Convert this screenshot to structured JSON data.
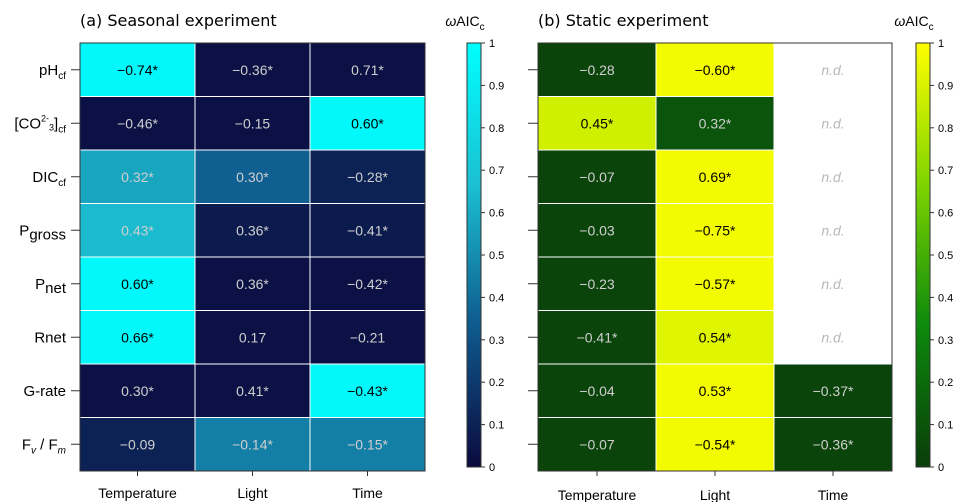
{
  "chart_data": [
    {
      "type": "heatmap",
      "title": "(a) Seasonal experiment",
      "rows": [
        "pH_cf",
        "[CO3 2-]_cf",
        "DIC_cf",
        "P_gross",
        "P_net",
        "Rnet",
        "G-rate",
        "F_v / F_m"
      ],
      "columns": [
        "Temperature",
        "Light",
        "Time"
      ],
      "cells": [
        [
          {
            "label": "−0.74*",
            "w": 0.97
          },
          {
            "label": "−0.36*",
            "w": 0.03
          },
          {
            "label": "0.71*",
            "w": 0.03
          }
        ],
        [
          {
            "label": "−0.46*",
            "w": 0.03
          },
          {
            "label": "−0.15",
            "w": 0.03
          },
          {
            "label": "0.60*",
            "w": 0.97
          }
        ],
        [
          {
            "label": "0.32*",
            "w": 0.58
          },
          {
            "label": "0.30*",
            "w": 0.35
          },
          {
            "label": "−0.28*",
            "w": 0.1
          }
        ],
        [
          {
            "label": "0.43*",
            "w": 0.65
          },
          {
            "label": "0.36*",
            "w": 0.07
          },
          {
            "label": "−0.41*",
            "w": 0.07
          }
        ],
        [
          {
            "label": "0.60*",
            "w": 0.97
          },
          {
            "label": "0.36*",
            "w": 0.03
          },
          {
            "label": "−0.42*",
            "w": 0.03
          }
        ],
        [
          {
            "label": "0.66*",
            "w": 0.97
          },
          {
            "label": "0.17",
            "w": 0.03
          },
          {
            "label": "−0.21",
            "w": 0.03
          }
        ],
        [
          {
            "label": "0.30*",
            "w": 0.03
          },
          {
            "label": "0.41*",
            "w": 0.03
          },
          {
            "label": "−0.43*",
            "w": 0.97
          }
        ],
        [
          {
            "label": "−0.09",
            "w": 0.1
          },
          {
            "label": "−0.14*",
            "w": 0.45
          },
          {
            "label": "−0.15*",
            "w": 0.45
          }
        ]
      ],
      "colorbar": {
        "label": "ωAIC_c",
        "range": [
          0,
          1
        ],
        "ticks": [
          "0",
          "0.1",
          "0.2",
          "0.3",
          "0.4",
          "0.5",
          "0.6",
          "0.7",
          "0.8",
          "0.9",
          "1"
        ],
        "colors": [
          "#0b0a3d",
          "#0f5a8e",
          "#1bc0d2",
          "#00ffff"
        ]
      }
    },
    {
      "type": "heatmap",
      "title": "(b) Static experiment",
      "rows": [
        "pH_cf",
        "[CO3 2-]_cf",
        "DIC_cf",
        "P_gross",
        "P_net",
        "Rnet",
        "G-rate",
        "F_v / F_m"
      ],
      "columns": [
        "Temperature",
        "Light",
        "Time"
      ],
      "cells": [
        [
          {
            "label": "−0.28",
            "w": 0.03
          },
          {
            "label": "−0.60*",
            "w": 0.97
          },
          {
            "label": "n.d.",
            "w": null
          }
        ],
        [
          {
            "label": "0.45*",
            "w": 0.88
          },
          {
            "label": "0.32*",
            "w": 0.1
          },
          {
            "label": "n.d.",
            "w": null
          }
        ],
        [
          {
            "label": "−0.07",
            "w": 0.03
          },
          {
            "label": "0.69*",
            "w": 0.97
          },
          {
            "label": "n.d.",
            "w": null
          }
        ],
        [
          {
            "label": "−0.03",
            "w": 0.03
          },
          {
            "label": "−0.75*",
            "w": 0.97
          },
          {
            "label": "n.d.",
            "w": null
          }
        ],
        [
          {
            "label": "−0.23",
            "w": 0.03
          },
          {
            "label": "−0.57*",
            "w": 0.97
          },
          {
            "label": "n.d.",
            "w": null
          }
        ],
        [
          {
            "label": "−0.41*",
            "w": 0.03
          },
          {
            "label": "0.54*",
            "w": 0.92
          },
          {
            "label": "n.d.",
            "w": null
          }
        ],
        [
          {
            "label": "−0.04",
            "w": 0.03
          },
          {
            "label": "0.53*",
            "w": 0.97
          },
          {
            "label": "−0.37*",
            "w": 0.03
          }
        ],
        [
          {
            "label": "−0.07",
            "w": 0.03
          },
          {
            "label": "−0.54*",
            "w": 0.97
          },
          {
            "label": "−0.36*",
            "w": 0.03
          }
        ]
      ],
      "colorbar": {
        "label": "ωAIC_c",
        "range": [
          0,
          1
        ],
        "ticks": [
          "0",
          "0.1",
          "0.2",
          "0.3",
          "0.4",
          "0.5",
          "0.6",
          "0.7",
          "0.8",
          "0.9",
          "1"
        ],
        "colors": [
          "#0a3d0a",
          "#0c8a0c",
          "#7fd400",
          "#ffff00"
        ]
      }
    }
  ]
}
